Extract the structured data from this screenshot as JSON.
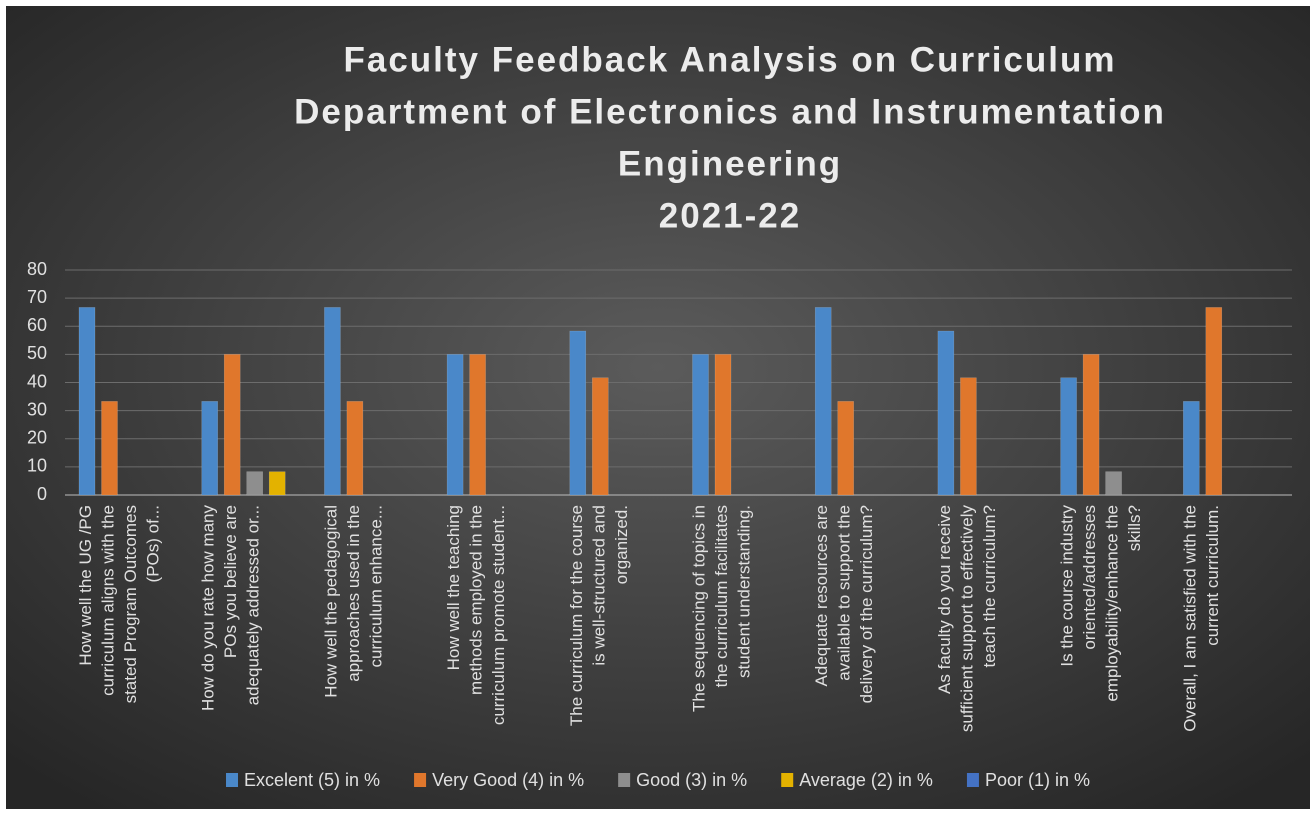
{
  "chart_data": {
    "type": "bar",
    "title": [
      "Faculty Feedback Analysis on Curriculum",
      "Department of Electronics and Instrumentation",
      "Engineering",
      "2021-22"
    ],
    "categories": [
      "How well the UG /PG curriculum aligns with the stated Program Outcomes (POs) of...",
      "How do you rate how many POs you believe are adequately addressed or...",
      "How well the pedagogical approaches used in the curriculum enhance...",
      "How well the teaching methods employed in the curriculum promote student...",
      "The curriculum for the course is well-structured and organized.",
      "The sequencing of topics in the curriculum facilitates student understanding.",
      "Adequate resources are available to support the delivery of the curriculum?",
      "As faculty do you receive sufficient support to effectively teach the curriculum?",
      "Is the course industry oriented/addresses employability/enhance the skills?",
      "Overall, I am satisfied with the current curriculum."
    ],
    "series": [
      {
        "name": "Excelent (5) in %",
        "color": "#4a88c9",
        "values": [
          66.7,
          33.3,
          66.7,
          50,
          58.3,
          50,
          66.7,
          58.3,
          41.7,
          33.3
        ]
      },
      {
        "name": "Very Good (4) in %",
        "color": "#e0772c",
        "values": [
          33.3,
          50,
          33.3,
          50,
          41.7,
          50,
          33.3,
          41.7,
          50,
          66.7
        ]
      },
      {
        "name": "Good (3) in %",
        "color": "#8e8e8e",
        "values": [
          0,
          8.3,
          0,
          0,
          0,
          0,
          0,
          0,
          8.3,
          0
        ]
      },
      {
        "name": "Average (2) in %",
        "color": "#e3b200",
        "values": [
          0,
          8.3,
          0,
          0,
          0,
          0,
          0,
          0,
          0,
          0
        ]
      },
      {
        "name": "Poor (1) in %",
        "color": "#4472c4",
        "values": [
          0,
          0,
          0,
          0,
          0,
          0,
          0,
          0,
          0,
          0
        ]
      }
    ],
    "ylim": [
      0,
      80
    ],
    "yticks": [
      0,
      10,
      20,
      30,
      40,
      50,
      60,
      70,
      80
    ],
    "grid": true,
    "legend": "bottom"
  }
}
